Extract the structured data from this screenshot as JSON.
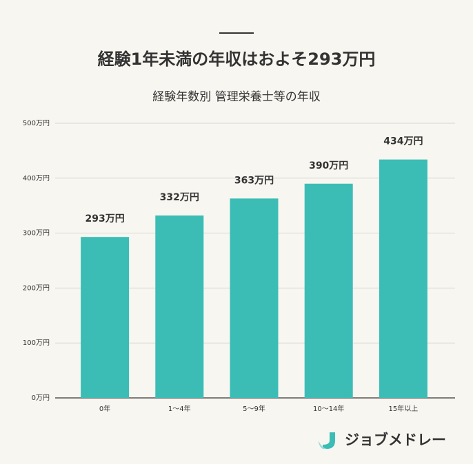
{
  "chart_data": {
    "type": "bar",
    "title": "経験1年未満の年収はおよそ293万円",
    "subtitle": "経験年数別 管理栄養士等の年収",
    "categories": [
      "0年",
      "1～4年",
      "5～9年",
      "10～14年",
      "15年以上"
    ],
    "values": [
      293,
      332,
      363,
      390,
      434
    ],
    "value_labels": [
      "293万円",
      "332万円",
      "363万円",
      "390万円",
      "434万円"
    ],
    "color": "#3bbdb6",
    "ylim": [
      0,
      500
    ],
    "yticks": [
      {
        "value": 0,
        "label": "0万円"
      },
      {
        "value": 100,
        "label": "100万円"
      },
      {
        "value": 200,
        "label": "200万円"
      },
      {
        "value": 300,
        "label": "300万円"
      },
      {
        "value": 400,
        "label": "400万円"
      },
      {
        "value": 500,
        "label": "500万円"
      }
    ],
    "grid": true
  },
  "logo": "ジョブメドレー"
}
